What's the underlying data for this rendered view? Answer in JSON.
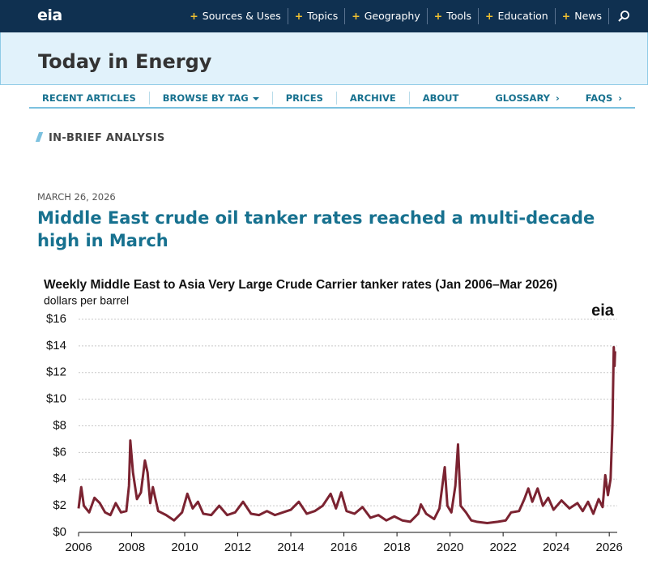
{
  "header": {
    "logo": "eia",
    "nav": [
      "Sources & Uses",
      "Topics",
      "Geography",
      "Tools",
      "Education",
      "News"
    ],
    "site_title": "Today in Energy",
    "subnav": [
      "RECENT ARTICLES",
      "BROWSE BY TAG",
      "PRICES",
      "ARCHIVE",
      "ABOUT"
    ],
    "subnav_right": [
      "GLOSSARY",
      "FAQS"
    ]
  },
  "article": {
    "tag": "IN-BRIEF ANALYSIS",
    "date": "MARCH 26, 2026",
    "headline": "Middle East crude oil tanker rates reached a multi-decade high in March"
  },
  "chart_data": {
    "type": "line",
    "title": "Weekly Middle East to Asia Very Large Crude Carrier tanker rates (Jan 2006–Mar 2026)",
    "subtitle": "dollars per barrel",
    "logo": "eia",
    "xlim": [
      2006,
      2026.3
    ],
    "xticks": [
      2006,
      2008,
      2010,
      2012,
      2014,
      2016,
      2018,
      2020,
      2022,
      2024,
      2026
    ],
    "ylim": [
      0,
      16
    ],
    "yticks": [
      {
        "value": 0,
        "label": "$0"
      },
      {
        "value": 2,
        "label": "$2"
      },
      {
        "value": 4,
        "label": "$4"
      },
      {
        "value": 6,
        "label": "$6"
      },
      {
        "value": 8,
        "label": "$8"
      },
      {
        "value": 10,
        "label": "$10"
      },
      {
        "value": 12,
        "label": "$12"
      },
      {
        "value": 14,
        "label": "$14"
      },
      {
        "value": 16,
        "label": "$16"
      }
    ],
    "grid": true,
    "series": [
      {
        "name": "tanker rates",
        "color": "#7b2331",
        "x": [
          2006.0,
          2006.1,
          2006.2,
          2006.4,
          2006.6,
          2006.8,
          2007.0,
          2007.2,
          2007.4,
          2007.6,
          2007.8,
          2007.9,
          2007.95,
          2008.05,
          2008.2,
          2008.35,
          2008.5,
          2008.6,
          2008.7,
          2008.8,
          2009.0,
          2009.3,
          2009.6,
          2009.9,
          2010.1,
          2010.3,
          2010.5,
          2010.7,
          2011.0,
          2011.3,
          2011.6,
          2011.9,
          2012.2,
          2012.5,
          2012.8,
          2013.1,
          2013.4,
          2013.7,
          2014.0,
          2014.3,
          2014.6,
          2014.9,
          2015.2,
          2015.5,
          2015.7,
          2015.9,
          2016.1,
          2016.4,
          2016.7,
          2017.0,
          2017.3,
          2017.6,
          2017.9,
          2018.2,
          2018.5,
          2018.8,
          2018.9,
          2019.1,
          2019.4,
          2019.6,
          2019.8,
          2019.9,
          2020.05,
          2020.2,
          2020.3,
          2020.4,
          2020.6,
          2020.8,
          2021.0,
          2021.4,
          2021.8,
          2022.1,
          2022.3,
          2022.6,
          2022.8,
          2022.95,
          2023.1,
          2023.3,
          2023.5,
          2023.7,
          2023.9,
          2024.2,
          2024.5,
          2024.8,
          2025.0,
          2025.2,
          2025.4,
          2025.6,
          2025.75,
          2025.85,
          2025.95,
          2026.05,
          2026.12,
          2026.17,
          2026.2,
          2026.22
        ],
        "values": [
          1.8,
          3.4,
          2.0,
          1.5,
          2.6,
          2.2,
          1.5,
          1.3,
          2.2,
          1.5,
          1.6,
          3.5,
          6.9,
          4.5,
          2.5,
          3.0,
          5.4,
          4.5,
          2.2,
          3.4,
          1.6,
          1.3,
          0.9,
          1.5,
          2.9,
          1.8,
          2.3,
          1.4,
          1.3,
          2.0,
          1.3,
          1.5,
          2.3,
          1.4,
          1.3,
          1.6,
          1.3,
          1.5,
          1.7,
          2.3,
          1.4,
          1.6,
          2.0,
          2.9,
          1.8,
          3.0,
          1.6,
          1.4,
          1.9,
          1.1,
          1.3,
          0.9,
          1.2,
          0.9,
          0.8,
          1.4,
          2.1,
          1.4,
          1.0,
          1.8,
          4.9,
          2.0,
          1.5,
          3.5,
          6.6,
          2.0,
          1.5,
          0.9,
          0.8,
          0.7,
          0.8,
          0.9,
          1.5,
          1.6,
          2.5,
          3.3,
          2.3,
          3.3,
          2.0,
          2.6,
          1.7,
          2.4,
          1.8,
          2.2,
          1.6,
          2.3,
          1.4,
          2.5,
          1.9,
          4.3,
          2.8,
          4.0,
          8.0,
          13.9,
          12.5,
          13.6
        ]
      }
    ]
  }
}
